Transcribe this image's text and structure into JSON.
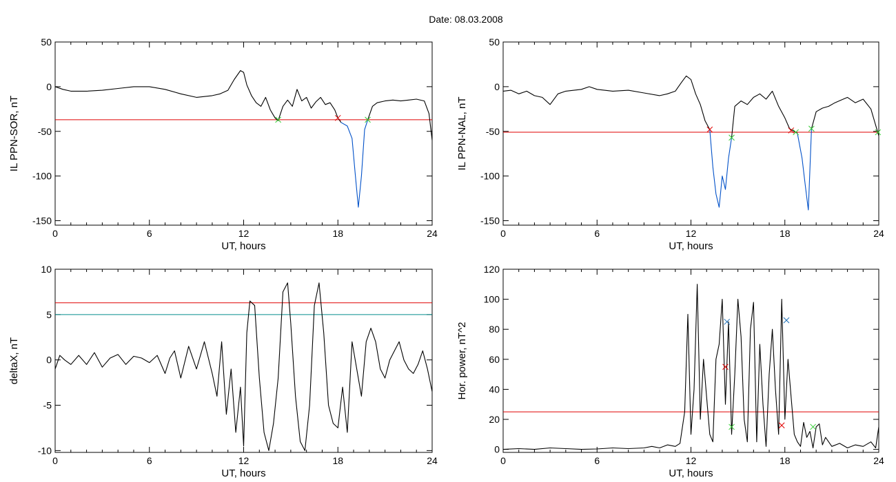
{
  "figure": {
    "title": "Date:  08.03.2008",
    "colors": {
      "series": "#000000",
      "threshold": "#e00000",
      "secondary": "#008c8c",
      "highlight": "#0050c8",
      "marker_red": "#e00000",
      "marker_green": "#33cc33",
      "marker_blue": "#1e6fb5"
    }
  },
  "chart_data": [
    {
      "id": "panel-ppn-sor",
      "type": "line",
      "xlabel": "UT, hours",
      "ylabel": "IL PPN-SOR, nT",
      "xlim": [
        0,
        24
      ],
      "ylim": [
        -155,
        50
      ],
      "xticks": [
        0,
        6,
        12,
        18,
        24
      ],
      "yticks": [
        50,
        0,
        -50,
        -100,
        -150
      ],
      "hlines": [
        {
          "y": -37,
          "color": "#e00000"
        }
      ],
      "series": [
        {
          "color": "#000000",
          "x": [
            0,
            0.5,
            1,
            2,
            3,
            4,
            5,
            6,
            7,
            8,
            9,
            10,
            10.5,
            11,
            11.4,
            11.8,
            12,
            12.2,
            12.5,
            12.8,
            13.1,
            13.4,
            13.7,
            14.0,
            14.2,
            14.5,
            14.8,
            15.1,
            15.4,
            15.7,
            16.0,
            16.3,
            16.6,
            16.9,
            17.2,
            17.5,
            17.8,
            18.0,
            18.2
          ],
          "y": [
            0,
            -3,
            -5,
            -5,
            -4,
            -2,
            0,
            0,
            -3,
            -8,
            -12,
            -10,
            -8,
            -4,
            8,
            18,
            16,
            2,
            -10,
            -18,
            -22,
            -12,
            -26,
            -35,
            -38,
            -22,
            -15,
            -22,
            -3,
            -16,
            -12,
            -24,
            -17,
            -12,
            -20,
            -18,
            -26,
            -35,
            -40
          ]
        },
        {
          "color": "#0050c8",
          "x": [
            18.2,
            18.6,
            18.9,
            19.1,
            19.3,
            19.5,
            19.7,
            19.9
          ],
          "y": [
            -40,
            -44,
            -58,
            -97,
            -135,
            -100,
            -48,
            -37
          ]
        },
        {
          "color": "#000000",
          "x": [
            19.9,
            20.2,
            20.5,
            21,
            21.5,
            22,
            22.5,
            23,
            23.5,
            23.8,
            24
          ],
          "y": [
            -37,
            -22,
            -18,
            -16,
            -15,
            -16,
            -15,
            -14,
            -16,
            -30,
            -60
          ]
        }
      ],
      "markers": [
        {
          "x": 14.2,
          "y": -37,
          "color": "#33cc33"
        },
        {
          "x": 18.0,
          "y": -35,
          "color": "#e00000"
        },
        {
          "x": 19.9,
          "y": -37,
          "color": "#33cc33"
        }
      ]
    },
    {
      "id": "panel-ppn-nal",
      "type": "line",
      "xlabel": "UT, hours",
      "ylabel": "IL PPN-NAL, nT",
      "xlim": [
        0,
        24
      ],
      "ylim": [
        -155,
        50
      ],
      "xticks": [
        0,
        6,
        12,
        18,
        24
      ],
      "yticks": [
        50,
        0,
        -50,
        -100,
        -150
      ],
      "hlines": [
        {
          "y": -51,
          "color": "#e00000"
        }
      ],
      "series": [
        {
          "color": "#000000",
          "x": [
            0,
            0.5,
            1,
            1.5,
            2,
            2.5,
            3,
            3.5,
            4,
            5,
            5.5,
            6,
            7,
            8,
            9,
            10,
            10.5,
            11,
            11.4,
            11.7,
            12,
            12.3,
            12.6,
            12.9,
            13.2
          ],
          "y": [
            -5,
            -4,
            -8,
            -5,
            -10,
            -12,
            -20,
            -8,
            -5,
            -3,
            0,
            -3,
            -5,
            -4,
            -7,
            -10,
            -8,
            -5,
            5,
            12,
            8,
            -8,
            -20,
            -38,
            -48
          ]
        },
        {
          "color": "#0050c8",
          "x": [
            13.2,
            13.4,
            13.6,
            13.8,
            14.0,
            14.2,
            14.4,
            14.6
          ],
          "y": [
            -48,
            -90,
            -120,
            -135,
            -100,
            -115,
            -80,
            -57
          ]
        },
        {
          "color": "#000000",
          "x": [
            14.6,
            14.8,
            15.2,
            15.6,
            16,
            16.4,
            16.8,
            17.2,
            17.6,
            18,
            18.3,
            18.6,
            18.8
          ],
          "y": [
            -57,
            -22,
            -16,
            -20,
            -12,
            -8,
            -14,
            -5,
            -22,
            -35,
            -47,
            -50,
            -52
          ]
        },
        {
          "color": "#0050c8",
          "x": [
            18.8,
            19.1,
            19.3,
            19.5,
            19.7
          ],
          "y": [
            -52,
            -80,
            -110,
            -138,
            -47
          ]
        },
        {
          "color": "#000000",
          "x": [
            19.7,
            20,
            20.4,
            20.8,
            21.2,
            21.6,
            22,
            22.5,
            23,
            23.5,
            24
          ],
          "y": [
            -47,
            -28,
            -24,
            -22,
            -18,
            -15,
            -12,
            -18,
            -14,
            -25,
            -55
          ]
        }
      ],
      "markers": [
        {
          "x": 13.2,
          "y": -48,
          "color": "#e00000"
        },
        {
          "x": 14.6,
          "y": -57,
          "color": "#33cc33"
        },
        {
          "x": 18.4,
          "y": -49,
          "color": "#e00000"
        },
        {
          "x": 18.7,
          "y": -51,
          "color": "#33cc33"
        },
        {
          "x": 19.7,
          "y": -47,
          "color": "#33cc33"
        },
        {
          "x": 23.95,
          "y": -51,
          "color": "#33cc33"
        }
      ]
    },
    {
      "id": "panel-deltax",
      "type": "line",
      "xlabel": "UT, hours",
      "ylabel": "deltaX, nT",
      "xlim": [
        0,
        24
      ],
      "ylim": [
        -10.2,
        10
      ],
      "xticks": [
        0,
        6,
        12,
        18,
        24
      ],
      "yticks": [
        10,
        5,
        0,
        -5,
        -10
      ],
      "hlines": [
        {
          "y": 6.3,
          "color": "#e00000"
        },
        {
          "y": 5.0,
          "color": "#008c8c"
        }
      ],
      "series": [
        {
          "color": "#000000",
          "x": [
            0,
            0.3,
            0.6,
            1,
            1.5,
            2,
            2.5,
            3,
            3.5,
            4,
            4.5,
            5,
            5.5,
            6,
            6.5,
            7,
            7.3,
            7.6,
            8,
            8.5,
            9,
            9.5,
            10,
            10.3,
            10.6,
            10.9,
            11.2,
            11.5,
            11.8,
            12,
            12.2,
            12.4,
            12.7,
            13,
            13.3,
            13.6,
            13.9,
            14.2,
            14.5,
            14.8,
            15,
            15.3,
            15.6,
            15.9,
            16.2,
            16.5,
            16.8,
            17.1,
            17.4,
            17.7,
            18,
            18.3,
            18.6,
            18.9,
            19.2,
            19.5,
            19.8,
            20.1,
            20.4,
            20.7,
            21,
            21.3,
            21.6,
            21.9,
            22.2,
            22.5,
            22.8,
            23.1,
            23.4,
            23.7,
            24
          ],
          "y": [
            -1,
            0.5,
            0,
            -0.5,
            0.5,
            -0.5,
            0.8,
            -0.8,
            0.2,
            0.6,
            -0.5,
            0.4,
            0.2,
            -0.3,
            0.5,
            -1.5,
            0.2,
            1,
            -2,
            1.5,
            -1,
            2,
            -1.5,
            -4,
            2,
            -6,
            -1,
            -8,
            -3,
            -9.5,
            3,
            6.5,
            6,
            -2,
            -8,
            -10,
            -7,
            -2,
            7.5,
            8.5,
            4,
            -4,
            -9,
            -10,
            -5,
            6,
            8.5,
            3,
            -5,
            -7,
            -7.5,
            -3,
            -8,
            2,
            -1,
            -4,
            2,
            3.5,
            2,
            -1,
            -2,
            0,
            1,
            2,
            0,
            -1,
            -1.5,
            -0.5,
            1,
            -1,
            -3.5
          ]
        }
      ],
      "markers": []
    },
    {
      "id": "panel-hor-power",
      "type": "line",
      "xlabel": "UT, hours",
      "ylabel": "Hor. power, nT^2",
      "xlim": [
        0,
        24
      ],
      "ylim": [
        -2,
        120
      ],
      "xticks": [
        0,
        6,
        12,
        18,
        24
      ],
      "yticks": [
        120,
        100,
        80,
        60,
        40,
        20,
        0
      ],
      "hlines": [
        {
          "y": 25,
          "color": "#e00000"
        }
      ],
      "series": [
        {
          "color": "#000000",
          "x": [
            0,
            1,
            2,
            3,
            4,
            5,
            6,
            7,
            8,
            9,
            9.5,
            10,
            10.5,
            11,
            11.3,
            11.6,
            11.8,
            12,
            12.2,
            12.4,
            12.6,
            12.8,
            13,
            13.2,
            13.4,
            13.6,
            13.8,
            14,
            14.2,
            14.4,
            14.6,
            14.8,
            15,
            15.2,
            15.4,
            15.6,
            15.8,
            16,
            16.2,
            16.4,
            16.6,
            16.8,
            17,
            17.2,
            17.4,
            17.6,
            17.8,
            18,
            18.2,
            18.4,
            18.6,
            18.8,
            19,
            19.2,
            19.4,
            19.6,
            19.8,
            20,
            20.2,
            20.4,
            20.6,
            20.8,
            21,
            21.5,
            22,
            22.5,
            23,
            23.5,
            23.8,
            24
          ],
          "y": [
            0,
            0.5,
            0,
            1,
            0.5,
            0,
            0.3,
            1,
            0.5,
            1,
            2,
            1,
            3,
            2,
            4,
            25,
            90,
            10,
            40,
            110,
            20,
            60,
            35,
            10,
            5,
            60,
            70,
            100,
            30,
            85,
            10,
            50,
            100,
            75,
            20,
            5,
            80,
            98,
            5,
            70,
            30,
            2,
            50,
            80,
            40,
            10,
            100,
            20,
            60,
            35,
            10,
            5,
            2,
            18,
            8,
            12,
            1,
            15,
            17,
            3,
            8,
            5,
            2,
            4,
            1,
            3,
            2,
            5,
            1,
            15
          ]
        }
      ],
      "markers": [
        {
          "x": 14.2,
          "y": 55,
          "color": "#e00000"
        },
        {
          "x": 14.3,
          "y": 85,
          "color": "#1e6fb5"
        },
        {
          "x": 14.6,
          "y": 15,
          "color": "#33cc33"
        },
        {
          "x": 17.8,
          "y": 16,
          "color": "#e00000"
        },
        {
          "x": 18.1,
          "y": 86,
          "color": "#1e6fb5"
        },
        {
          "x": 19.8,
          "y": 15,
          "color": "#33cc33"
        }
      ]
    }
  ]
}
